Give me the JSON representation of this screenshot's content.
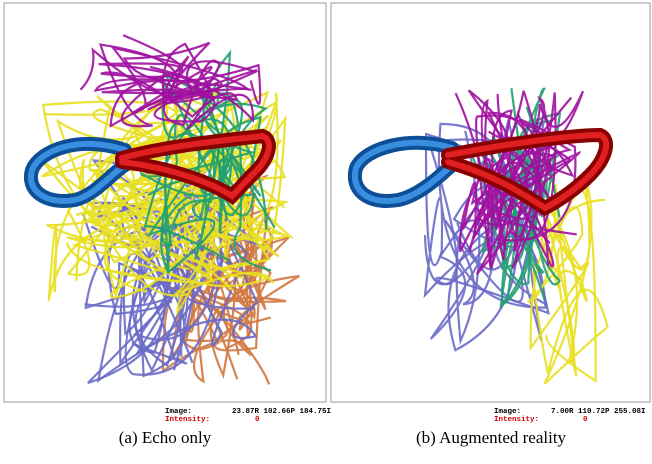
{
  "panels": [
    {
      "caption": "(a) Echo only",
      "image_label": "Image:",
      "image_coords": "23.87R 102.66P 184.75I",
      "intensity_label": "Intensity:",
      "intensity_value": "0"
    },
    {
      "caption": "(b) Augmented reality",
      "image_label": "Image:",
      "image_coords": "7.00R 110.72P 255.08I",
      "intensity_label": "Intensity:",
      "intensity_value": "0"
    }
  ]
}
